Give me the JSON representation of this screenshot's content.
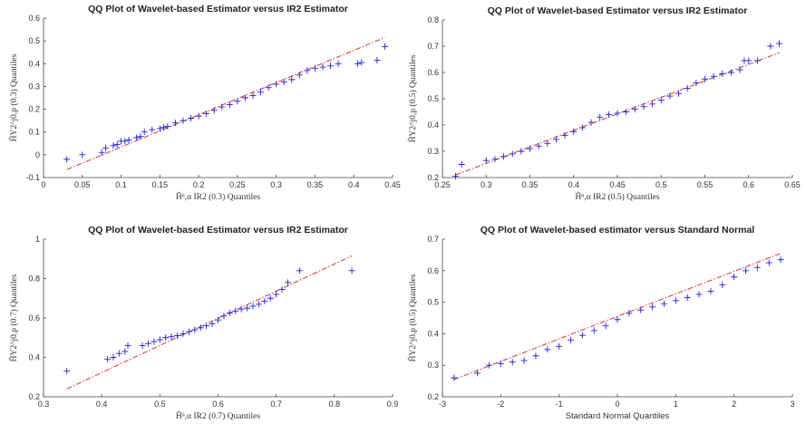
{
  "chart_data": [
    {
      "type": "scatter",
      "title": "QQ Plot of Wavelet-based Estimator versus IR2 Estimator",
      "xlabel": "\\widehat{H^{IR2}_{n,\\alpha}}(0.3) Quantiles",
      "xlabel_display": "Ĥⁿ,α IR2 (0.3) Quantiles",
      "ylabel": "\\widehat{H_{Y2^{j_0},p}}(0.3) Quantiles",
      "ylabel_display": "ĤY2^j0,p (0.3) Quantiles",
      "xlim": [
        0,
        0.45
      ],
      "ylim": [
        -0.1,
        0.6
      ],
      "xticks": [
        "0",
        "0.05",
        "0.1",
        "0.15",
        "0.2",
        "0.25",
        "0.3",
        "0.35",
        "0.4",
        "0.45"
      ],
      "yticks": [
        "-0.1",
        "0",
        "0.1",
        "0.2",
        "0.3",
        "0.4",
        "0.5",
        "0.6"
      ],
      "x": [
        0.03,
        0.05,
        0.075,
        0.08,
        0.09,
        0.095,
        0.1,
        0.105,
        0.11,
        0.12,
        0.125,
        0.13,
        0.14,
        0.15,
        0.155,
        0.16,
        0.17,
        0.18,
        0.19,
        0.2,
        0.21,
        0.22,
        0.23,
        0.24,
        0.25,
        0.26,
        0.27,
        0.28,
        0.29,
        0.3,
        0.31,
        0.32,
        0.33,
        0.34,
        0.35,
        0.36,
        0.37,
        0.38,
        0.405,
        0.41,
        0.43,
        0.44
      ],
      "y": [
        -0.02,
        0.0,
        0.01,
        0.03,
        0.04,
        0.045,
        0.06,
        0.06,
        0.065,
        0.075,
        0.08,
        0.1,
        0.11,
        0.115,
        0.12,
        0.125,
        0.14,
        0.15,
        0.16,
        0.17,
        0.18,
        0.195,
        0.21,
        0.22,
        0.235,
        0.25,
        0.26,
        0.275,
        0.295,
        0.31,
        0.32,
        0.33,
        0.35,
        0.37,
        0.38,
        0.385,
        0.39,
        0.4,
        0.4,
        0.405,
        0.415,
        0.475
      ],
      "reference_line": {
        "x": [
          0.03,
          0.44
        ],
        "y": [
          -0.065,
          0.515
        ]
      }
    },
    {
      "type": "scatter",
      "title": "QQ Plot of Wavelet-based Estimator versus IR2 Estimator",
      "xlabel": "\\widehat{H^{IR2}_{n,\\alpha}}(0.5) Quantiles",
      "xlabel_display": "Ĥⁿ,α IR2 (0.5) Quantiles",
      "ylabel": "\\widehat{H_{Y2^{j_0},p}}(0.5) Quantiles",
      "ylabel_display": "ĤY2^j0,p (0.5) Quantiles",
      "xlim": [
        0.25,
        0.65
      ],
      "ylim": [
        0.2,
        0.8
      ],
      "xticks": [
        "0.25",
        "0.3",
        "0.35",
        "0.4",
        "0.45",
        "0.5",
        "0.55",
        "0.6",
        "0.65"
      ],
      "yticks": [
        "0.2",
        "0.3",
        "0.4",
        "0.5",
        "0.6",
        "0.7",
        "0.8"
      ],
      "x": [
        0.265,
        0.272,
        0.3,
        0.31,
        0.32,
        0.33,
        0.34,
        0.35,
        0.36,
        0.37,
        0.38,
        0.39,
        0.4,
        0.41,
        0.42,
        0.43,
        0.44,
        0.45,
        0.46,
        0.47,
        0.48,
        0.49,
        0.5,
        0.51,
        0.52,
        0.53,
        0.54,
        0.55,
        0.56,
        0.57,
        0.58,
        0.59,
        0.595,
        0.6,
        0.61,
        0.625,
        0.635
      ],
      "y": [
        0.205,
        0.25,
        0.265,
        0.27,
        0.28,
        0.29,
        0.3,
        0.31,
        0.32,
        0.33,
        0.345,
        0.36,
        0.375,
        0.39,
        0.41,
        0.43,
        0.44,
        0.445,
        0.45,
        0.46,
        0.47,
        0.48,
        0.495,
        0.51,
        0.52,
        0.54,
        0.56,
        0.575,
        0.585,
        0.595,
        0.6,
        0.61,
        0.645,
        0.645,
        0.645,
        0.7,
        0.71
      ],
      "reference_line": {
        "x": [
          0.265,
          0.635
        ],
        "y": [
          0.21,
          0.675
        ]
      }
    },
    {
      "type": "scatter",
      "title": "QQ Plot of Wavelet-based Estimator versus IR2 Estimator",
      "xlabel": "\\widehat{H^{IR2}_{n,\\alpha}}(0.7) Quantiles",
      "xlabel_display": "Ĥⁿ,α IR2 (0.7) Quantiles",
      "ylabel": "\\widehat{H_{Y2^{j_0},p}}(0.7) Quantiles",
      "ylabel_display": "ĤY2^j0,p (0.7) Quantiles",
      "xlim": [
        0.3,
        0.9
      ],
      "ylim": [
        0.2,
        1.0
      ],
      "xticks": [
        "0.3",
        "0.4",
        "0.5",
        "0.6",
        "0.7",
        "0.8",
        "0.9"
      ],
      "yticks": [
        "0.2",
        "0.4",
        "0.6",
        "0.8",
        "1"
      ],
      "x": [
        0.34,
        0.41,
        0.42,
        0.43,
        0.44,
        0.445,
        0.47,
        0.48,
        0.49,
        0.5,
        0.51,
        0.52,
        0.53,
        0.54,
        0.55,
        0.56,
        0.57,
        0.58,
        0.59,
        0.6,
        0.61,
        0.62,
        0.63,
        0.64,
        0.65,
        0.66,
        0.67,
        0.68,
        0.69,
        0.7,
        0.71,
        0.72,
        0.74,
        0.83
      ],
      "y": [
        0.33,
        0.39,
        0.4,
        0.42,
        0.43,
        0.46,
        0.46,
        0.47,
        0.48,
        0.49,
        0.5,
        0.505,
        0.51,
        0.52,
        0.53,
        0.54,
        0.55,
        0.56,
        0.57,
        0.59,
        0.61,
        0.625,
        0.635,
        0.645,
        0.65,
        0.66,
        0.67,
        0.685,
        0.7,
        0.72,
        0.745,
        0.78,
        0.84,
        0.84
      ],
      "reference_line": {
        "x": [
          0.34,
          0.83
        ],
        "y": [
          0.24,
          0.915
        ]
      }
    },
    {
      "type": "scatter",
      "title": "QQ Plot of Wavelet-based estimator versus Standard Normal",
      "xlabel": "Standard Normal Quantiles",
      "ylabel": "\\widehat{H_{Y2^{j_0},p}}(0.5) Quantiles",
      "ylabel_display": "ĤY2^j0,p (0.5) Quantiles",
      "xlim": [
        -3,
        3
      ],
      "ylim": [
        0.2,
        0.7
      ],
      "xticks": [
        "-3",
        "-2",
        "-1",
        "0",
        "1",
        "2",
        "3"
      ],
      "yticks": [
        "0.2",
        "0.3",
        "0.4",
        "0.5",
        "0.6",
        "0.7"
      ],
      "x": [
        -2.8,
        -2.4,
        -2.2,
        -2.0,
        -1.8,
        -1.6,
        -1.4,
        -1.2,
        -1.0,
        -0.8,
        -0.6,
        -0.4,
        -0.2,
        0.0,
        0.2,
        0.4,
        0.6,
        0.8,
        1.0,
        1.2,
        1.4,
        1.6,
        1.8,
        2.0,
        2.2,
        2.4,
        2.6,
        2.8
      ],
      "y": [
        0.26,
        0.275,
        0.3,
        0.305,
        0.31,
        0.315,
        0.33,
        0.35,
        0.36,
        0.38,
        0.395,
        0.41,
        0.425,
        0.445,
        0.465,
        0.475,
        0.485,
        0.495,
        0.505,
        0.515,
        0.525,
        0.535,
        0.555,
        0.58,
        0.6,
        0.61,
        0.625,
        0.635
      ],
      "reference_line": {
        "x": [
          -2.8,
          2.8
        ],
        "y": [
          0.255,
          0.655
        ]
      }
    }
  ]
}
